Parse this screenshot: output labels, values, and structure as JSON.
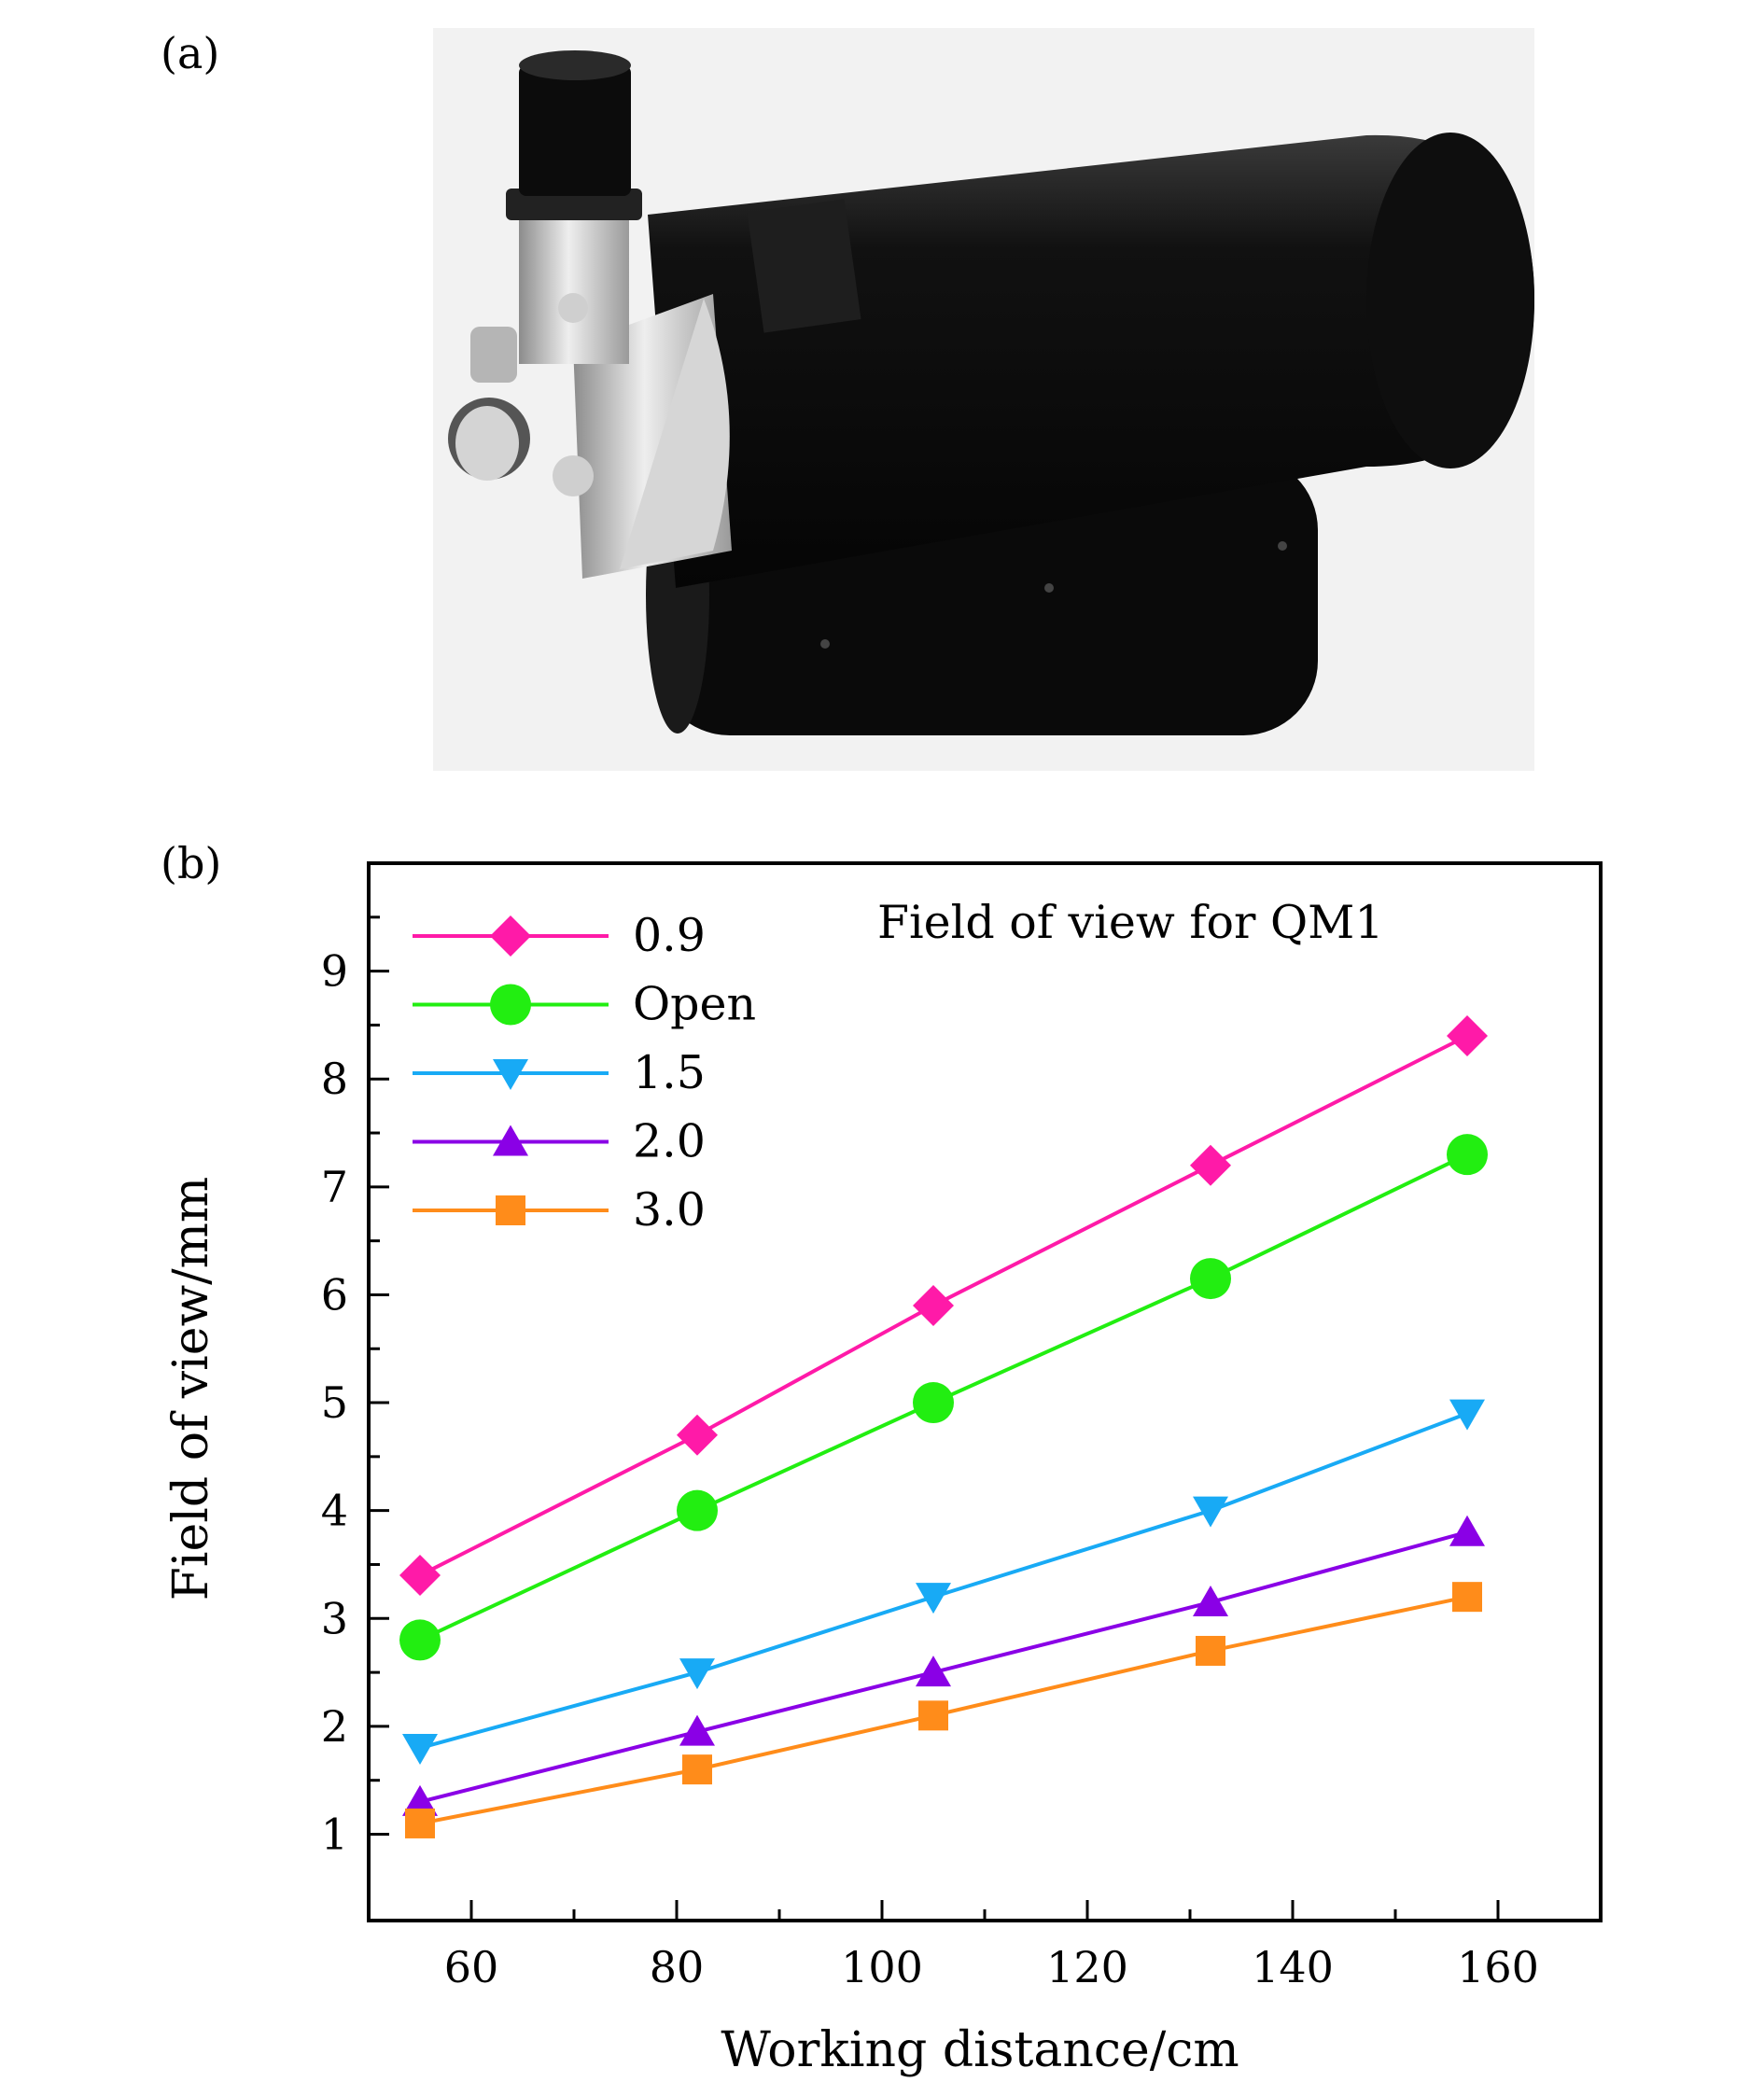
{
  "panels": {
    "a_label": "(a)",
    "b_label": "(b)"
  },
  "photo": {
    "icon": "telescope-photo",
    "colors": {
      "body": "#0b0b0b",
      "metal": "#c8c8c8",
      "background": "#f2f2f2"
    }
  },
  "chart_data": {
    "type": "line",
    "annotation": "Field of view for QM1",
    "xlabel": "Working distance/cm",
    "ylabel": "Field of view/mm",
    "xlim": [
      50,
      170
    ],
    "ylim": [
      0.2,
      10
    ],
    "xticks": [
      60,
      80,
      100,
      120,
      140,
      160
    ],
    "yticks": [
      1,
      2,
      3,
      4,
      5,
      6,
      7,
      8,
      9
    ],
    "grid": false,
    "legend_position": "top-left",
    "x": [
      55,
      82,
      105,
      132,
      157
    ],
    "series": [
      {
        "name": "0.9",
        "marker": "diamond",
        "color": "#ff1aa8",
        "values": [
          3.4,
          4.7,
          5.9,
          7.2,
          8.4
        ]
      },
      {
        "name": "Open",
        "marker": "circle",
        "color": "#22ee11",
        "values": [
          2.8,
          4.0,
          5.0,
          6.15,
          7.3
        ]
      },
      {
        "name": "1.5",
        "marker": "triangle-down",
        "color": "#18aaf5",
        "values": [
          1.8,
          2.5,
          3.2,
          4.0,
          4.9
        ]
      },
      {
        "name": "2.0",
        "marker": "triangle-up",
        "color": "#8a00e6",
        "values": [
          1.3,
          1.95,
          2.5,
          3.15,
          3.8
        ]
      },
      {
        "name": "3.0",
        "marker": "square",
        "color": "#ff8c1a",
        "values": [
          1.1,
          1.6,
          2.1,
          2.7,
          3.2
        ]
      }
    ]
  }
}
